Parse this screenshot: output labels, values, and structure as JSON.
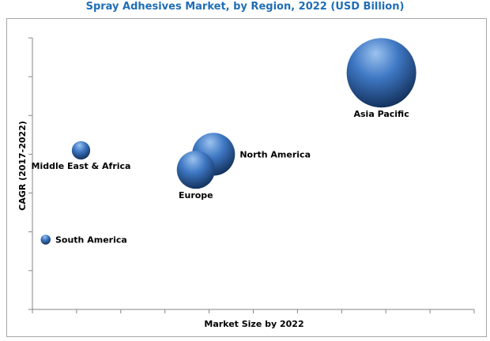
{
  "colors": {
    "title": "#1f6eb5",
    "axis": "#868686",
    "text": "#000000",
    "bubble_light": "#9cc3ef",
    "bubble_mid": "#3f78c4",
    "bubble_dark": "#12305a"
  },
  "chart_data": {
    "type": "bubble",
    "title": "Spray Adhesives Market, by Region, 2022 (USD Billion)",
    "xlabel": "Market Size by 2022",
    "ylabel": "CAGR (2017-2022)",
    "xlim": [
      0,
      10
    ],
    "ylim": [
      0,
      7
    ],
    "grid": false,
    "legend": "none",
    "points": [
      {
        "label": "Asia Pacific",
        "x": 7.9,
        "y": 6.1,
        "size": 1.0
      },
      {
        "label": "North America",
        "x": 4.1,
        "y": 4.0,
        "size": 0.38
      },
      {
        "label": "Europe",
        "x": 3.7,
        "y": 3.6,
        "size": 0.3
      },
      {
        "label": "Middle East & Africa",
        "x": 1.1,
        "y": 4.1,
        "size": 0.07
      },
      {
        "label": "South America",
        "x": 0.3,
        "y": 1.8,
        "size": 0.02
      }
    ]
  }
}
